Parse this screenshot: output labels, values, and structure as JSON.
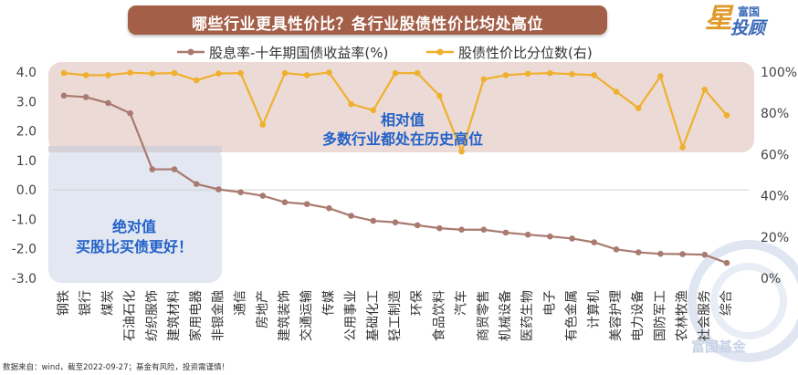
{
  "title": "哪些行业更具性价比？各行业股债性价比均处高位",
  "logo": {
    "top": "富国",
    "bottom": "投顾",
    "star_icon": "星"
  },
  "source_note": "数据来自：wind，截至2022-09-27；基金有风险，投资需谨慎！",
  "watermark": "富国基金",
  "colors": {
    "title_bg": "#a35f47",
    "series1": "#a97a70",
    "series2": "#f0b02f",
    "box_pink": "#e7d3cf",
    "box_blue": "#dde3ef",
    "annotation": "#2461c8"
  },
  "chart_data": {
    "type": "line",
    "categories": [
      "钢铁",
      "银行",
      "煤炭",
      "石油石化",
      "纺织服饰",
      "建筑材料",
      "家用电器",
      "非银金融",
      "通信",
      "房地产",
      "建筑装饰",
      "交通运输",
      "传媒",
      "公用事业",
      "基础化工",
      "轻工制造",
      "环保",
      "食品饮料",
      "汽车",
      "商贸零售",
      "机械设备",
      "医药生物",
      "电子",
      "有色金属",
      "计算机",
      "美容护理",
      "电力设备",
      "国防军工",
      "农林牧渔",
      "社会服务",
      "综合"
    ],
    "series": [
      {
        "name": "股息率-十年期国债收益率(%)",
        "axis": "left",
        "values": [
          3.2,
          3.15,
          2.95,
          2.6,
          0.7,
          0.7,
          0.2,
          0.02,
          -0.08,
          -0.2,
          -0.42,
          -0.48,
          -0.62,
          -0.88,
          -1.05,
          -1.1,
          -1.2,
          -1.3,
          -1.35,
          -1.35,
          -1.45,
          -1.52,
          -1.58,
          -1.65,
          -1.78,
          -2.02,
          -2.12,
          -2.17,
          -2.18,
          -2.2,
          -2.48
        ]
      },
      {
        "name": "股债性价比分位数(右)",
        "axis": "right",
        "values": [
          99.5,
          98.5,
          98.5,
          99.7,
          99.3,
          99.5,
          96,
          99.3,
          99.5,
          74.5,
          99.5,
          98.5,
          99.8,
          84.5,
          81.5,
          99.5,
          99.5,
          88.5,
          61.5,
          96.5,
          98.5,
          99.2,
          99.5,
          99,
          98.5,
          90.5,
          82.5,
          98,
          63.5,
          91.5,
          79
        ]
      }
    ],
    "y_left": {
      "min": -3.0,
      "max": 4.0,
      "ticks": [
        "-3.0",
        "-2.0",
        "-1.0",
        "0.0",
        "1.0",
        "2.0",
        "3.0",
        "4.0"
      ]
    },
    "y_right": {
      "min": 0,
      "max": 100,
      "ticks": [
        "0%",
        "20%",
        "40%",
        "60%",
        "80%",
        "100%"
      ]
    },
    "legend_position": "top",
    "grid": false,
    "annotations": {
      "relative": {
        "line1": "相对值",
        "line2": "多数行业都处在历史高位"
      },
      "absolute": {
        "line1": "绝对值",
        "line2": "买股比买债更好！"
      }
    }
  }
}
